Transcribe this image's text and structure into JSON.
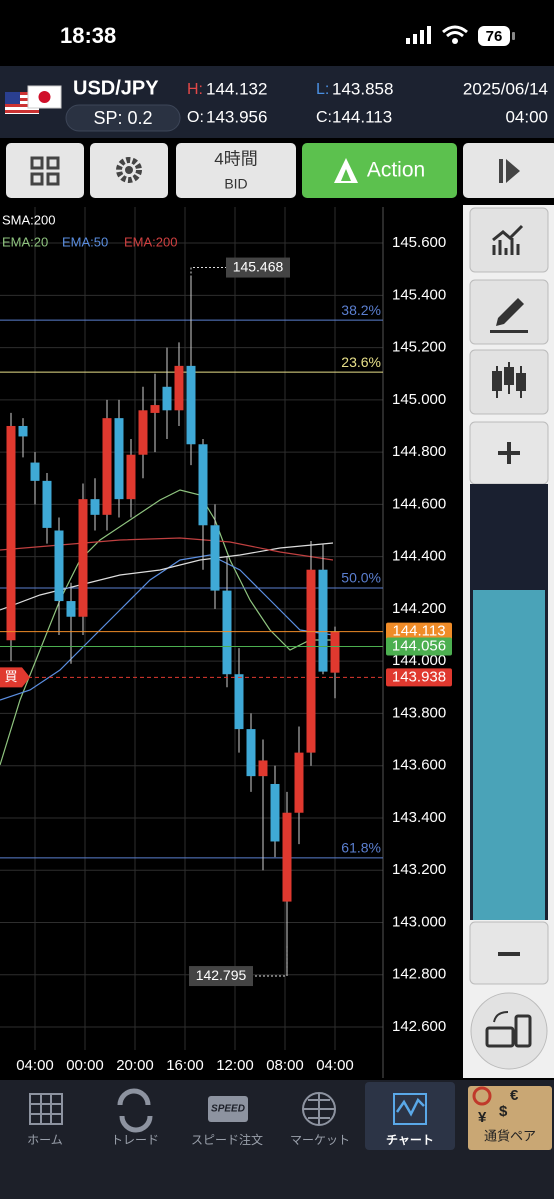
{
  "status_bar": {
    "time": "18:38",
    "battery": "76"
  },
  "header": {
    "pair": "USD/JPY",
    "spread": "SP: 0.2",
    "high_label": "H:",
    "high": "144.132",
    "low_label": "L:",
    "low": "143.858",
    "open_label": "O:",
    "open": "143.956",
    "close_label": "C:",
    "close": "144.113",
    "date": "2025/06/14",
    "time": "04:00"
  },
  "toolbar": {
    "timeframe": "4時間",
    "price_type": "BID",
    "action": "Action"
  },
  "chart_data": {
    "type": "candlestick",
    "indicators": [
      {
        "name": "SMA:200",
        "color": "#ffffff"
      },
      {
        "name": "EMA:20",
        "color": "#8fc47f"
      },
      {
        "name": "EMA:50",
        "color": "#5b8ee0"
      },
      {
        "name": "EMA:200",
        "color": "#d04040"
      }
    ],
    "xticks": [
      "04:00",
      "00:00",
      "20:00",
      "16:00",
      "12:00",
      "08:00",
      "04:00"
    ],
    "open": [
      144.08,
      144.9,
      144.76,
      144.69,
      144.5,
      144.23,
      144.17,
      144.62,
      144.56,
      144.93,
      144.62,
      144.79,
      144.95,
      145.05,
      144.96,
      145.13,
      144.83,
      144.52,
      144.27,
      143.95,
      143.74,
      143.56,
      143.53,
      143.08,
      143.42,
      143.65,
      144.35,
      143.956
    ],
    "high": [
      144.95,
      144.93,
      144.8,
      144.72,
      144.55,
      144.3,
      144.68,
      144.7,
      145.0,
      145.0,
      144.85,
      145.05,
      145.1,
      145.2,
      145.22,
      145.468,
      144.85,
      144.6,
      144.4,
      144.05,
      143.8,
      143.7,
      143.6,
      143.5,
      143.75,
      144.46,
      144.45,
      144.132
    ],
    "low": [
      144.0,
      144.78,
      144.6,
      144.45,
      144.1,
      143.99,
      144.1,
      144.5,
      144.5,
      144.55,
      144.55,
      144.7,
      144.8,
      144.85,
      144.9,
      144.75,
      144.35,
      144.2,
      143.9,
      143.65,
      143.5,
      143.2,
      143.25,
      142.795,
      143.3,
      143.6,
      143.95,
      143.858
    ],
    "close": [
      144.9,
      144.86,
      144.69,
      144.51,
      144.23,
      144.17,
      144.62,
      144.56,
      144.93,
      144.62,
      144.79,
      144.96,
      144.98,
      144.96,
      145.13,
      144.83,
      144.52,
      144.27,
      143.95,
      143.74,
      143.56,
      143.62,
      143.31,
      143.42,
      143.65,
      144.35,
      143.96,
      144.113
    ],
    "up_color": "#e0392f",
    "down_color": "#3fa9d6",
    "ylim": [
      142.512,
      145.738
    ],
    "yticks": [
      {
        "value": 142.6,
        "label": "142.600"
      },
      {
        "value": 142.8,
        "label": "142.800"
      },
      {
        "value": 143.0,
        "label": "143.000"
      },
      {
        "value": 143.2,
        "label": "143.200"
      },
      {
        "value": 143.4,
        "label": "143.400"
      },
      {
        "value": 143.6,
        "label": "143.600"
      },
      {
        "value": 143.8,
        "label": "143.800"
      },
      {
        "value": 144.0,
        "label": "144.000"
      },
      {
        "value": 144.2,
        "label": "144.200"
      },
      {
        "value": 144.4,
        "label": "144.400"
      },
      {
        "value": 144.6,
        "label": "144.600"
      },
      {
        "value": 144.8,
        "label": "144.800"
      },
      {
        "value": 145.0,
        "label": "145.000"
      },
      {
        "value": 145.2,
        "label": "145.200"
      },
      {
        "value": 145.4,
        "label": "145.400"
      },
      {
        "value": 145.6,
        "label": "145.600"
      }
    ],
    "grid": true,
    "fib_levels": [
      {
        "label": "38.2%",
        "value": 145.305,
        "color": "#5b7fd0"
      },
      {
        "label": "23.6%",
        "value": 145.106,
        "color": "#e8e08a"
      },
      {
        "label": "50.0%",
        "value": 144.28,
        "color": "#5b7fd0"
      },
      {
        "label": "61.8%",
        "value": 143.247,
        "color": "#5b7fd0"
      }
    ],
    "annotations": [
      145.468,
      142.795
    ],
    "price_lines": [
      {
        "value": 144.113,
        "color": "#f08c28"
      },
      {
        "value": 144.056,
        "color": "#4caf50"
      },
      {
        "value": 143.938,
        "color": "#e0392f"
      }
    ],
    "position_label": "買"
  },
  "nav": [
    "ホーム",
    "トレード",
    "スピード注文",
    "マーケット",
    "チャート",
    "通貨ペア"
  ],
  "nav_speed_icon": "SPEED"
}
